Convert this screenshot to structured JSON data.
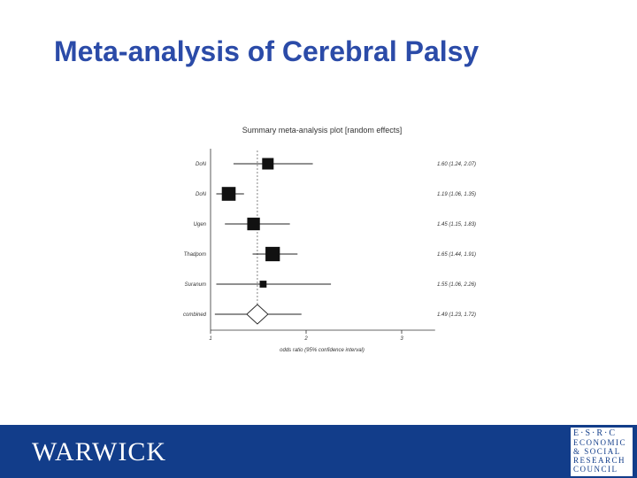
{
  "slide": {
    "title": "Meta-analysis of Cerebral Palsy"
  },
  "chart_data": {
    "type": "forest",
    "title": "Summary meta-analysis plot [random effects]",
    "xlabel": "odds ratio (95% confidence interval)",
    "x_ticks": [
      "1",
      "2",
      "3"
    ],
    "xlim": [
      1,
      3.35
    ],
    "reference_line": 1.49,
    "studies": [
      {
        "label": "DoN",
        "or": 1.6,
        "lo": 1.24,
        "hi": 2.07,
        "ci_text": "1.60 (1.24, 2.07)",
        "weight": 1.0
      },
      {
        "label": "DoN",
        "or": 1.19,
        "lo": 1.06,
        "hi": 1.35,
        "ci_text": "1.19 (1.06, 1.35)",
        "weight": 1.2
      },
      {
        "label": "Ugen",
        "or": 1.45,
        "lo": 1.15,
        "hi": 1.83,
        "ci_text": "1.45 (1.15, 1.83)",
        "weight": 1.1
      },
      {
        "label": "Thadpom",
        "or": 1.65,
        "lo": 1.44,
        "hi": 1.91,
        "ci_text": "1.65 (1.44, 1.91)",
        "weight": 1.25
      },
      {
        "label": "Suranum",
        "or": 1.55,
        "lo": 1.06,
        "hi": 2.26,
        "ci_text": "1.55 (1.06, 2.26)",
        "weight": 0.6
      }
    ],
    "combined": {
      "label": "combined",
      "or": 1.49,
      "lo": 1.23,
      "hi": 1.72,
      "ci_text": "1.49 (1.23, 1.72)"
    }
  },
  "footer": {
    "logo_text": "WARWICK",
    "esrc_lines": [
      "E·S·R·C",
      "ECONOMIC",
      "& SOCIAL",
      "RESEARCH",
      "COUNCIL"
    ],
    "bar_color": "#123d8a"
  }
}
